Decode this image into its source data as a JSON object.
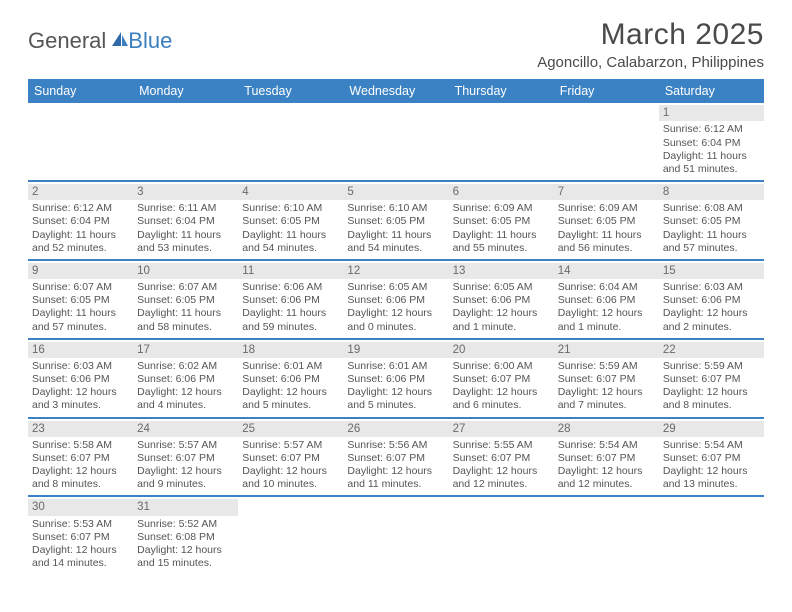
{
  "logo": {
    "general": "General",
    "blue": "Blue"
  },
  "header": {
    "month_title": "March 2025",
    "location": "Agoncillo, Calabarzon, Philippines"
  },
  "colors": {
    "header_bar": "#3b82c4",
    "week_divider": "#3b82c4",
    "daynum_bg": "#e8e8e8",
    "text": "#4a4a4a",
    "logo_blue": "#3b7fbf"
  },
  "weekdays": [
    "Sunday",
    "Monday",
    "Tuesday",
    "Wednesday",
    "Thursday",
    "Friday",
    "Saturday"
  ],
  "weeks": [
    [
      null,
      null,
      null,
      null,
      null,
      null,
      {
        "n": "1",
        "sr": "Sunrise: 6:12 AM",
        "ss": "Sunset: 6:04 PM",
        "dl": "Daylight: 11 hours and 51 minutes."
      }
    ],
    [
      {
        "n": "2",
        "sr": "Sunrise: 6:12 AM",
        "ss": "Sunset: 6:04 PM",
        "dl": "Daylight: 11 hours and 52 minutes."
      },
      {
        "n": "3",
        "sr": "Sunrise: 6:11 AM",
        "ss": "Sunset: 6:04 PM",
        "dl": "Daylight: 11 hours and 53 minutes."
      },
      {
        "n": "4",
        "sr": "Sunrise: 6:10 AM",
        "ss": "Sunset: 6:05 PM",
        "dl": "Daylight: 11 hours and 54 minutes."
      },
      {
        "n": "5",
        "sr": "Sunrise: 6:10 AM",
        "ss": "Sunset: 6:05 PM",
        "dl": "Daylight: 11 hours and 54 minutes."
      },
      {
        "n": "6",
        "sr": "Sunrise: 6:09 AM",
        "ss": "Sunset: 6:05 PM",
        "dl": "Daylight: 11 hours and 55 minutes."
      },
      {
        "n": "7",
        "sr": "Sunrise: 6:09 AM",
        "ss": "Sunset: 6:05 PM",
        "dl": "Daylight: 11 hours and 56 minutes."
      },
      {
        "n": "8",
        "sr": "Sunrise: 6:08 AM",
        "ss": "Sunset: 6:05 PM",
        "dl": "Daylight: 11 hours and 57 minutes."
      }
    ],
    [
      {
        "n": "9",
        "sr": "Sunrise: 6:07 AM",
        "ss": "Sunset: 6:05 PM",
        "dl": "Daylight: 11 hours and 57 minutes."
      },
      {
        "n": "10",
        "sr": "Sunrise: 6:07 AM",
        "ss": "Sunset: 6:05 PM",
        "dl": "Daylight: 11 hours and 58 minutes."
      },
      {
        "n": "11",
        "sr": "Sunrise: 6:06 AM",
        "ss": "Sunset: 6:06 PM",
        "dl": "Daylight: 11 hours and 59 minutes."
      },
      {
        "n": "12",
        "sr": "Sunrise: 6:05 AM",
        "ss": "Sunset: 6:06 PM",
        "dl": "Daylight: 12 hours and 0 minutes."
      },
      {
        "n": "13",
        "sr": "Sunrise: 6:05 AM",
        "ss": "Sunset: 6:06 PM",
        "dl": "Daylight: 12 hours and 1 minute."
      },
      {
        "n": "14",
        "sr": "Sunrise: 6:04 AM",
        "ss": "Sunset: 6:06 PM",
        "dl": "Daylight: 12 hours and 1 minute."
      },
      {
        "n": "15",
        "sr": "Sunrise: 6:03 AM",
        "ss": "Sunset: 6:06 PM",
        "dl": "Daylight: 12 hours and 2 minutes."
      }
    ],
    [
      {
        "n": "16",
        "sr": "Sunrise: 6:03 AM",
        "ss": "Sunset: 6:06 PM",
        "dl": "Daylight: 12 hours and 3 minutes."
      },
      {
        "n": "17",
        "sr": "Sunrise: 6:02 AM",
        "ss": "Sunset: 6:06 PM",
        "dl": "Daylight: 12 hours and 4 minutes."
      },
      {
        "n": "18",
        "sr": "Sunrise: 6:01 AM",
        "ss": "Sunset: 6:06 PM",
        "dl": "Daylight: 12 hours and 5 minutes."
      },
      {
        "n": "19",
        "sr": "Sunrise: 6:01 AM",
        "ss": "Sunset: 6:06 PM",
        "dl": "Daylight: 12 hours and 5 minutes."
      },
      {
        "n": "20",
        "sr": "Sunrise: 6:00 AM",
        "ss": "Sunset: 6:07 PM",
        "dl": "Daylight: 12 hours and 6 minutes."
      },
      {
        "n": "21",
        "sr": "Sunrise: 5:59 AM",
        "ss": "Sunset: 6:07 PM",
        "dl": "Daylight: 12 hours and 7 minutes."
      },
      {
        "n": "22",
        "sr": "Sunrise: 5:59 AM",
        "ss": "Sunset: 6:07 PM",
        "dl": "Daylight: 12 hours and 8 minutes."
      }
    ],
    [
      {
        "n": "23",
        "sr": "Sunrise: 5:58 AM",
        "ss": "Sunset: 6:07 PM",
        "dl": "Daylight: 12 hours and 8 minutes."
      },
      {
        "n": "24",
        "sr": "Sunrise: 5:57 AM",
        "ss": "Sunset: 6:07 PM",
        "dl": "Daylight: 12 hours and 9 minutes."
      },
      {
        "n": "25",
        "sr": "Sunrise: 5:57 AM",
        "ss": "Sunset: 6:07 PM",
        "dl": "Daylight: 12 hours and 10 minutes."
      },
      {
        "n": "26",
        "sr": "Sunrise: 5:56 AM",
        "ss": "Sunset: 6:07 PM",
        "dl": "Daylight: 12 hours and 11 minutes."
      },
      {
        "n": "27",
        "sr": "Sunrise: 5:55 AM",
        "ss": "Sunset: 6:07 PM",
        "dl": "Daylight: 12 hours and 12 minutes."
      },
      {
        "n": "28",
        "sr": "Sunrise: 5:54 AM",
        "ss": "Sunset: 6:07 PM",
        "dl": "Daylight: 12 hours and 12 minutes."
      },
      {
        "n": "29",
        "sr": "Sunrise: 5:54 AM",
        "ss": "Sunset: 6:07 PM",
        "dl": "Daylight: 12 hours and 13 minutes."
      }
    ],
    [
      {
        "n": "30",
        "sr": "Sunrise: 5:53 AM",
        "ss": "Sunset: 6:07 PM",
        "dl": "Daylight: 12 hours and 14 minutes."
      },
      {
        "n": "31",
        "sr": "Sunrise: 5:52 AM",
        "ss": "Sunset: 6:08 PM",
        "dl": "Daylight: 12 hours and 15 minutes."
      },
      null,
      null,
      null,
      null,
      null
    ]
  ]
}
